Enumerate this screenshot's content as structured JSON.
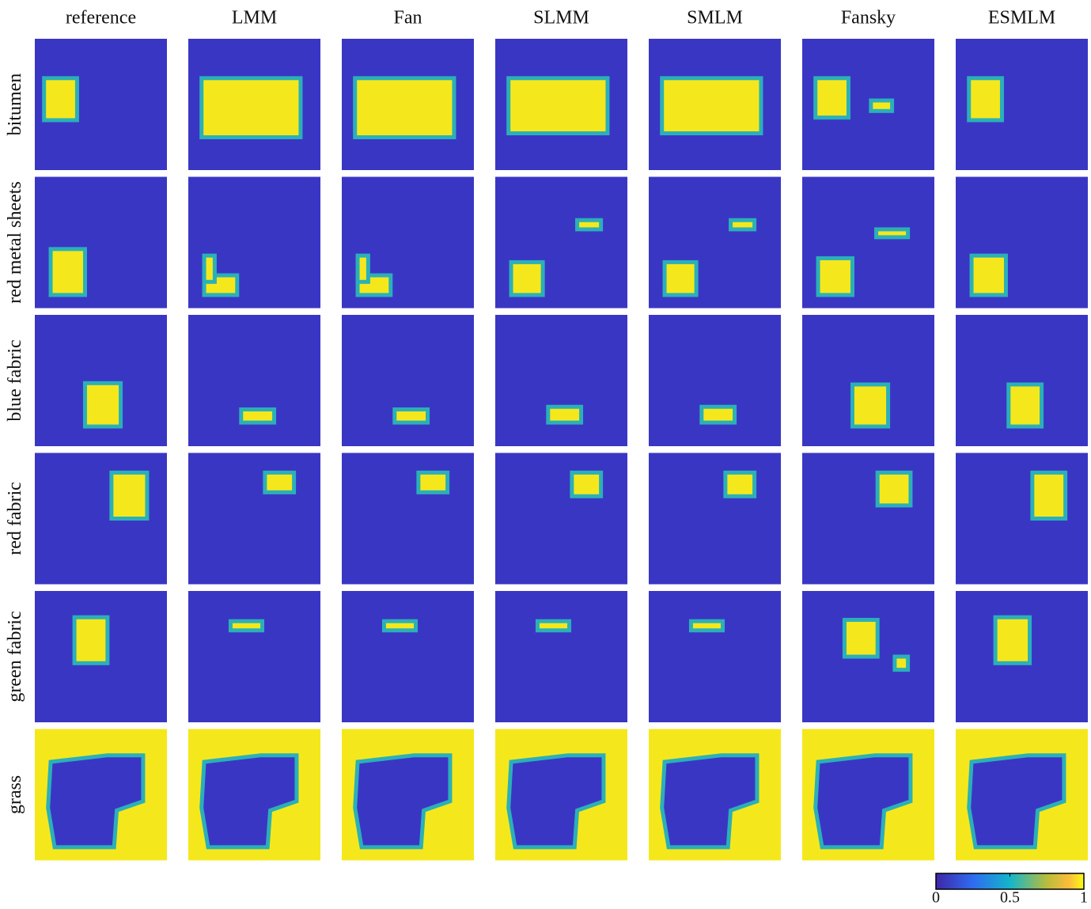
{
  "columns": [
    "reference",
    "LMM",
    "Fan",
    "SLMM",
    "SMLM",
    "Fansky",
    "ESMLM"
  ],
  "rows": [
    "bitumen",
    "red metal sheets",
    "blue fabric",
    "red fabric",
    "green fabric",
    "grass"
  ],
  "colorbar": {
    "ticks": [
      {
        "value": 0,
        "label": "0"
      },
      {
        "value": 0.5,
        "label": "0.5"
      },
      {
        "value": 1,
        "label": "1"
      }
    ]
  }
}
